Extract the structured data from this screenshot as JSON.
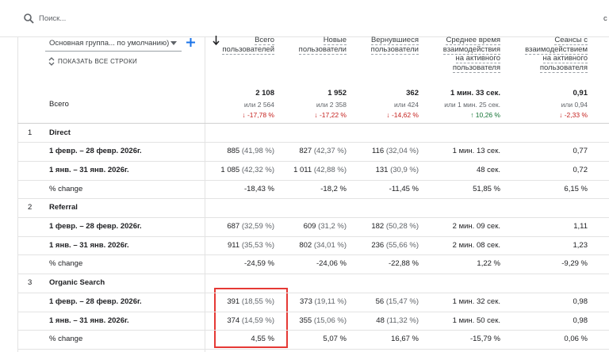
{
  "search": {
    "placeholder": "Поиск...",
    "right_cut": "с"
  },
  "header": {
    "dimension_selector": "Основная группа... по умолчанию)",
    "show_all": "ПОКАЗАТЬ ВСЕ СТРОКИ",
    "columns": [
      [
        "Всего",
        "пользователей"
      ],
      [
        "Новые",
        "пользователи"
      ],
      [
        "Вернувшиеся",
        "пользователи"
      ],
      [
        "Среднее время",
        "взаимодействия",
        "на активного",
        "пользователя"
      ],
      [
        "Сеансы с",
        "взаимодействием",
        "на активного",
        "пользователя"
      ]
    ]
  },
  "totals": {
    "label": "Всего",
    "cells": [
      {
        "value": "2 108",
        "compare": "или 2 564",
        "change": "↓ -17,78 %",
        "trend": "down"
      },
      {
        "value": "1 952",
        "compare": "или 2 358",
        "change": "↓ -17,22 %",
        "trend": "down"
      },
      {
        "value": "362",
        "compare": "или 424",
        "change": "↓ -14,62 %",
        "trend": "down"
      },
      {
        "value": "1 мин. 33 сек.",
        "compare": "или 1 мин. 25 сек.",
        "change": "↑ 10,26 %",
        "trend": "up"
      },
      {
        "value": "0,91",
        "compare": "или 0,94",
        "change": "↓ -2,33 %",
        "trend": "down"
      }
    ]
  },
  "groups": [
    {
      "index": "1",
      "name": "Direct",
      "rows": [
        {
          "label": "1 февр. – 28 февр. 2026г.",
          "cells": [
            {
              "main": "885",
              "share": "(41,98 %)"
            },
            {
              "main": "827",
              "share": "(42,37 %)"
            },
            {
              "main": "116",
              "share": "(32,04 %)"
            },
            {
              "main": "1 мин. 13 сек."
            },
            {
              "main": "0,77"
            }
          ]
        },
        {
          "label": "1 янв. – 31 янв. 2026г.",
          "cells": [
            {
              "main": "1 085",
              "share": "(42,32 %)"
            },
            {
              "main": "1 011",
              "share": "(42,88 %)"
            },
            {
              "main": "131",
              "share": "(30,9 %)"
            },
            {
              "main": "48 сек."
            },
            {
              "main": "0,72"
            }
          ]
        },
        {
          "label": "% change",
          "cells": [
            {
              "main": "-18,43 %"
            },
            {
              "main": "-18,2 %"
            },
            {
              "main": "-11,45 %"
            },
            {
              "main": "51,85 %"
            },
            {
              "main": "6,15 %"
            }
          ]
        }
      ]
    },
    {
      "index": "2",
      "name": "Referral",
      "rows": [
        {
          "label": "1 февр. – 28 февр. 2026г.",
          "cells": [
            {
              "main": "687",
              "share": "(32,59 %)"
            },
            {
              "main": "609",
              "share": "(31,2 %)"
            },
            {
              "main": "182",
              "share": "(50,28 %)"
            },
            {
              "main": "2 мин. 09 сек."
            },
            {
              "main": "1,11"
            }
          ]
        },
        {
          "label": "1 янв. – 31 янв. 2026г.",
          "cells": [
            {
              "main": "911",
              "share": "(35,53 %)"
            },
            {
              "main": "802",
              "share": "(34,01 %)"
            },
            {
              "main": "236",
              "share": "(55,66 %)"
            },
            {
              "main": "2 мин. 08 сек."
            },
            {
              "main": "1,23"
            }
          ]
        },
        {
          "label": "% change",
          "cells": [
            {
              "main": "-24,59 %"
            },
            {
              "main": "-24,06 %"
            },
            {
              "main": "-22,88 %"
            },
            {
              "main": "1,22 %"
            },
            {
              "main": "-9,29 %"
            }
          ]
        }
      ]
    },
    {
      "index": "3",
      "name": "Organic Search",
      "rows": [
        {
          "label": "1 февр. – 28 февр. 2026г.",
          "cells": [
            {
              "main": "391",
              "share": "(18,55 %)"
            },
            {
              "main": "373",
              "share": "(19,11 %)"
            },
            {
              "main": "56",
              "share": "(15,47 %)"
            },
            {
              "main": "1 мин. 32 сек."
            },
            {
              "main": "0,98"
            }
          ]
        },
        {
          "label": "1 янв. – 31 янв. 2026г.",
          "cells": [
            {
              "main": "374",
              "share": "(14,59 %)"
            },
            {
              "main": "355",
              "share": "(15,06 %)"
            },
            {
              "main": "48",
              "share": "(11,32 %)"
            },
            {
              "main": "1 мин. 50 сек."
            },
            {
              "main": "0,98"
            }
          ]
        },
        {
          "label": "% change",
          "cells": [
            {
              "main": "4,55 %"
            },
            {
              "main": "5,07 %"
            },
            {
              "main": "16,67 %"
            },
            {
              "main": "-15,79 %"
            },
            {
              "main": "0,06 %"
            }
          ]
        }
      ]
    }
  ]
}
